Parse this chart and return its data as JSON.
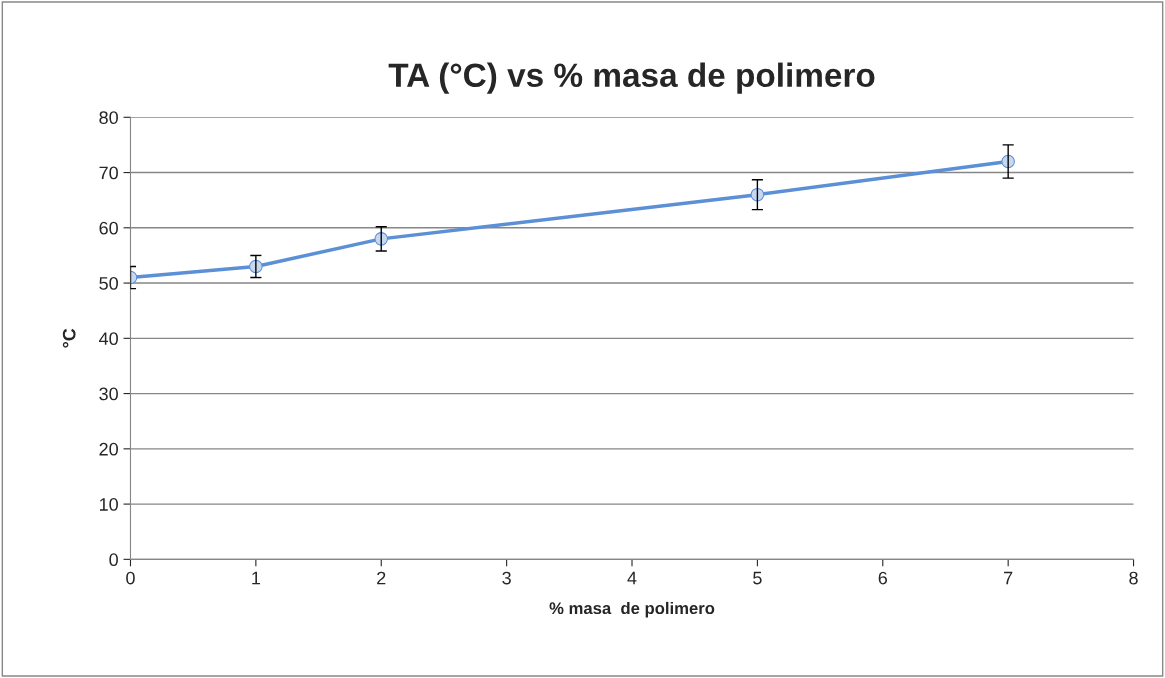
{
  "chart_data": {
    "type": "line",
    "title": "TA (°C) vs % masa de polimero",
    "xlabel": "% masa  de polimero",
    "ylabel": "°C",
    "x": [
      0,
      1,
      2,
      5,
      7
    ],
    "series": [
      {
        "color": "#5b8fd6",
        "values": [
          51,
          53,
          58,
          66,
          72
        ],
        "errors": [
          2,
          2,
          2.2,
          2.7,
          3
        ]
      }
    ],
    "xlim": [
      0,
      8
    ],
    "xticks": [
      0,
      1,
      2,
      3,
      4,
      5,
      6,
      7,
      8
    ],
    "ylim": [
      0,
      80
    ],
    "yticks": [
      0,
      10,
      20,
      30,
      40,
      50,
      60,
      70,
      80
    ],
    "grid": "y",
    "marker": "circle",
    "line_style": "solid",
    "legend": false
  }
}
